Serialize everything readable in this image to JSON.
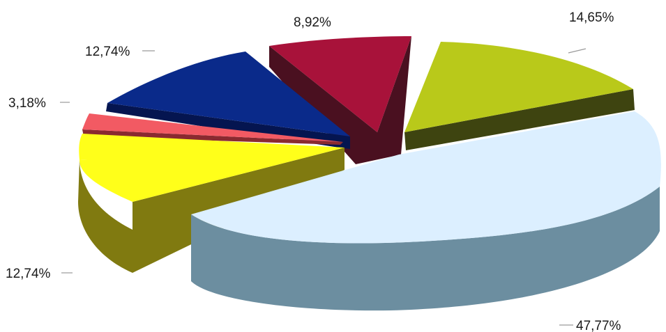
{
  "chart_data": {
    "type": "pie",
    "style": "3d-exploded",
    "slices": [
      {
        "label": "47,77%",
        "value": 47.77,
        "color": "#dcefff",
        "side_color": "#6c8ea0"
      },
      {
        "label": "12,74%",
        "value": 12.74,
        "color": "#ffff1a",
        "side_color": "#807a10"
      },
      {
        "label": "3,18%",
        "value": 3.18,
        "color": "#f25a63",
        "side_color": "#8a2a30"
      },
      {
        "label": "12,74%",
        "value": 12.74,
        "color": "#0a2a8a",
        "side_color": "#051550"
      },
      {
        "label": "8,92%",
        "value": 8.92,
        "color": "#a8123a",
        "side_color": "#4a1020"
      },
      {
        "label": "14,65%",
        "value": 14.65,
        "color": "#b9c91a",
        "side_color": "#3e4410"
      }
    ],
    "legend": "none"
  }
}
